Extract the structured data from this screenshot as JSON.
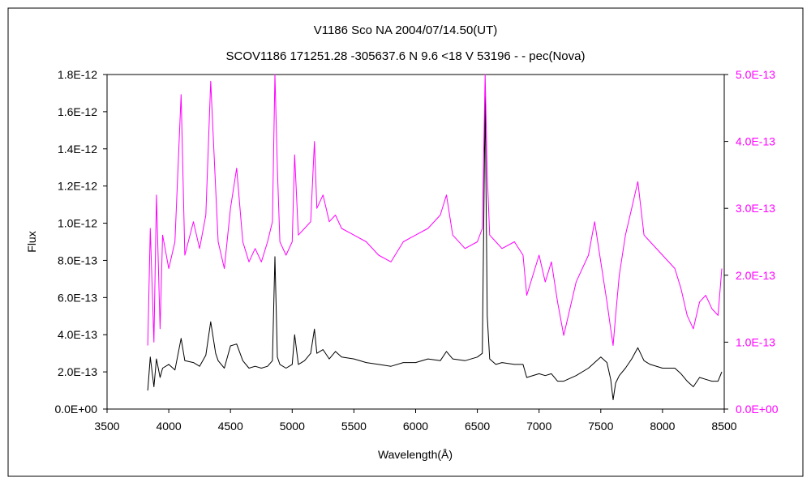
{
  "chart_data": {
    "type": "line",
    "title": "V1186 Sco    NA    2004/07/14.50(UT)",
    "subtitle": "SCOV1186 171251.28 -305637.6 N 9.6 <18 V 53196 - - pec(Nova)",
    "xlabel": "Wavelength(Å)",
    "ylabel": "Flux",
    "xlim": [
      3500,
      8500
    ],
    "ylim_left": [
      0,
      1.8e-12
    ],
    "ylim_right": [
      0,
      5e-13
    ],
    "grid": false,
    "legend": "none",
    "x_ticks": [
      "3500",
      "4000",
      "4500",
      "5000",
      "5500",
      "6000",
      "6500",
      "7000",
      "7500",
      "8000",
      "8500"
    ],
    "y_left_ticks": [
      "0.0E+00",
      "2.0E-13",
      "4.0E-13",
      "6.0E-13",
      "8.0E-13",
      "1.0E-12",
      "1.2E-12",
      "1.4E-12",
      "1.6E-12",
      "1.8E-12"
    ],
    "y_right_ticks": [
      "0.0E+00",
      "1.0E-13",
      "2.0E-13",
      "3.0E-13",
      "4.0E-13",
      "5.0E-13"
    ],
    "colors": {
      "left_series": "#000000",
      "right_series": "#ff00ff",
      "right_axis": "#ff00ff"
    },
    "series": [
      {
        "axis": "left",
        "color": "#000000",
        "x": [
          3830,
          3850,
          3880,
          3900,
          3930,
          3950,
          4000,
          4050,
          4100,
          4130,
          4200,
          4250,
          4300,
          4340,
          4380,
          4400,
          4450,
          4500,
          4550,
          4600,
          4650,
          4700,
          4750,
          4800,
          4840,
          4860,
          4880,
          4900,
          4950,
          5000,
          5020,
          5050,
          5100,
          5150,
          5180,
          5200,
          5250,
          5300,
          5350,
          5400,
          5500,
          5600,
          5700,
          5800,
          5900,
          6000,
          6100,
          6200,
          6250,
          6300,
          6400,
          6500,
          6540,
          6563,
          6580,
          6600,
          6650,
          6700,
          6800,
          6870,
          6900,
          7000,
          7050,
          7100,
          7150,
          7200,
          7300,
          7400,
          7450,
          7500,
          7550,
          7580,
          7600,
          7620,
          7650,
          7700,
          7750,
          7800,
          7850,
          7900,
          8000,
          8100,
          8150,
          8200,
          8250,
          8300,
          8350,
          8400,
          8450,
          8480
        ],
        "y": [
          1e-13,
          2.8e-13,
          1.2e-13,
          2.7e-13,
          1.7e-13,
          2.2e-13,
          2.4e-13,
          2.1e-13,
          3.8e-13,
          2.6e-13,
          2.5e-13,
          2.3e-13,
          2.9e-13,
          4.7e-13,
          3e-13,
          2.6e-13,
          2.2e-13,
          3.4e-13,
          3.5e-13,
          2.6e-13,
          2.2e-13,
          2.3e-13,
          2.2e-13,
          2.3e-13,
          2.6e-13,
          8.2e-13,
          2.8e-13,
          2.4e-13,
          2.2e-13,
          2.4e-13,
          4e-13,
          2.4e-13,
          2.6e-13,
          3e-13,
          4.3e-13,
          3e-13,
          3.2e-13,
          2.7e-13,
          3.1e-13,
          2.8e-13,
          2.7e-13,
          2.5e-13,
          2.4e-13,
          2.3e-13,
          2.5e-13,
          2.5e-13,
          2.7e-13,
          2.6e-13,
          3.1e-13,
          2.7e-13,
          2.6e-13,
          2.8e-13,
          3e-13,
          1.68e-12,
          5e-13,
          2.7e-13,
          2.4e-13,
          2.5e-13,
          2.4e-13,
          2.4e-13,
          1.7e-13,
          1.9e-13,
          1.8e-13,
          1.9e-13,
          1.5e-13,
          1.5e-13,
          1.8e-13,
          2.2e-13,
          2.5e-13,
          2.8e-13,
          2.5e-13,
          1.6e-13,
          5e-14,
          1.4e-13,
          1.8e-13,
          2.2e-13,
          2.7e-13,
          3.3e-13,
          2.6e-13,
          2.4e-13,
          2.2e-13,
          2.2e-13,
          1.9e-13,
          1.5e-13,
          1.2e-13,
          1.7e-13,
          1.6e-13,
          1.5e-13,
          1.5e-13,
          2e-13
        ]
      },
      {
        "axis": "right",
        "color": "#ff00ff",
        "x": [
          3830,
          3850,
          3880,
          3900,
          3930,
          3950,
          4000,
          4050,
          4100,
          4130,
          4200,
          4250,
          4300,
          4340,
          4380,
          4400,
          4450,
          4500,
          4550,
          4600,
          4650,
          4700,
          4750,
          4800,
          4840,
          4860,
          4880,
          4900,
          4950,
          5000,
          5020,
          5050,
          5100,
          5150,
          5180,
          5200,
          5250,
          5300,
          5350,
          5400,
          5500,
          5600,
          5700,
          5800,
          5900,
          6000,
          6100,
          6200,
          6250,
          6300,
          6400,
          6500,
          6540,
          6563,
          6580,
          6600,
          6650,
          6700,
          6800,
          6870,
          6900,
          7000,
          7050,
          7100,
          7150,
          7200,
          7300,
          7400,
          7450,
          7500,
          7550,
          7580,
          7600,
          7620,
          7650,
          7700,
          7750,
          7800,
          7850,
          7900,
          8000,
          8100,
          8150,
          8200,
          8250,
          8300,
          8350,
          8400,
          8450,
          8480
        ],
        "y": [
          9.5e-14,
          2.7e-13,
          1e-13,
          3.2e-13,
          1.2e-13,
          2.6e-13,
          2.1e-13,
          2.5e-13,
          4.7e-13,
          2.3e-13,
          2.8e-13,
          2.4e-13,
          2.9e-13,
          4.9e-13,
          3.3e-13,
          2.5e-13,
          2.1e-13,
          3e-13,
          3.6e-13,
          2.5e-13,
          2.2e-13,
          2.4e-13,
          2.2e-13,
          2.5e-13,
          2.8e-13,
          5e-13,
          3.6e-13,
          2.5e-13,
          2.3e-13,
          2.5e-13,
          3.8e-13,
          2.6e-13,
          2.7e-13,
          2.8e-13,
          4e-13,
          3e-13,
          3.2e-13,
          2.8e-13,
          2.9e-13,
          2.7e-13,
          2.6e-13,
          2.5e-13,
          2.3e-13,
          2.2e-13,
          2.5e-13,
          2.6e-13,
          2.7e-13,
          2.9e-13,
          3.2e-13,
          2.6e-13,
          2.4e-13,
          2.5e-13,
          2.7e-13,
          5e-13,
          3.5e-13,
          2.6e-13,
          2.5e-13,
          2.4e-13,
          2.5e-13,
          2.3e-13,
          1.7e-13,
          2.3e-13,
          1.9e-13,
          2.2e-13,
          1.6e-13,
          1.1e-13,
          1.9e-13,
          2.3e-13,
          2.8e-13,
          2.2e-13,
          1.6e-13,
          1.2e-13,
          9.5e-14,
          1.4e-13,
          2e-13,
          2.6e-13,
          3e-13,
          3.4e-13,
          2.6e-13,
          2.5e-13,
          2.3e-13,
          2.1e-13,
          1.8e-13,
          1.4e-13,
          1.2e-13,
          1.6e-13,
          1.7e-13,
          1.5e-13,
          1.4e-13,
          2.1e-13
        ]
      }
    ]
  }
}
